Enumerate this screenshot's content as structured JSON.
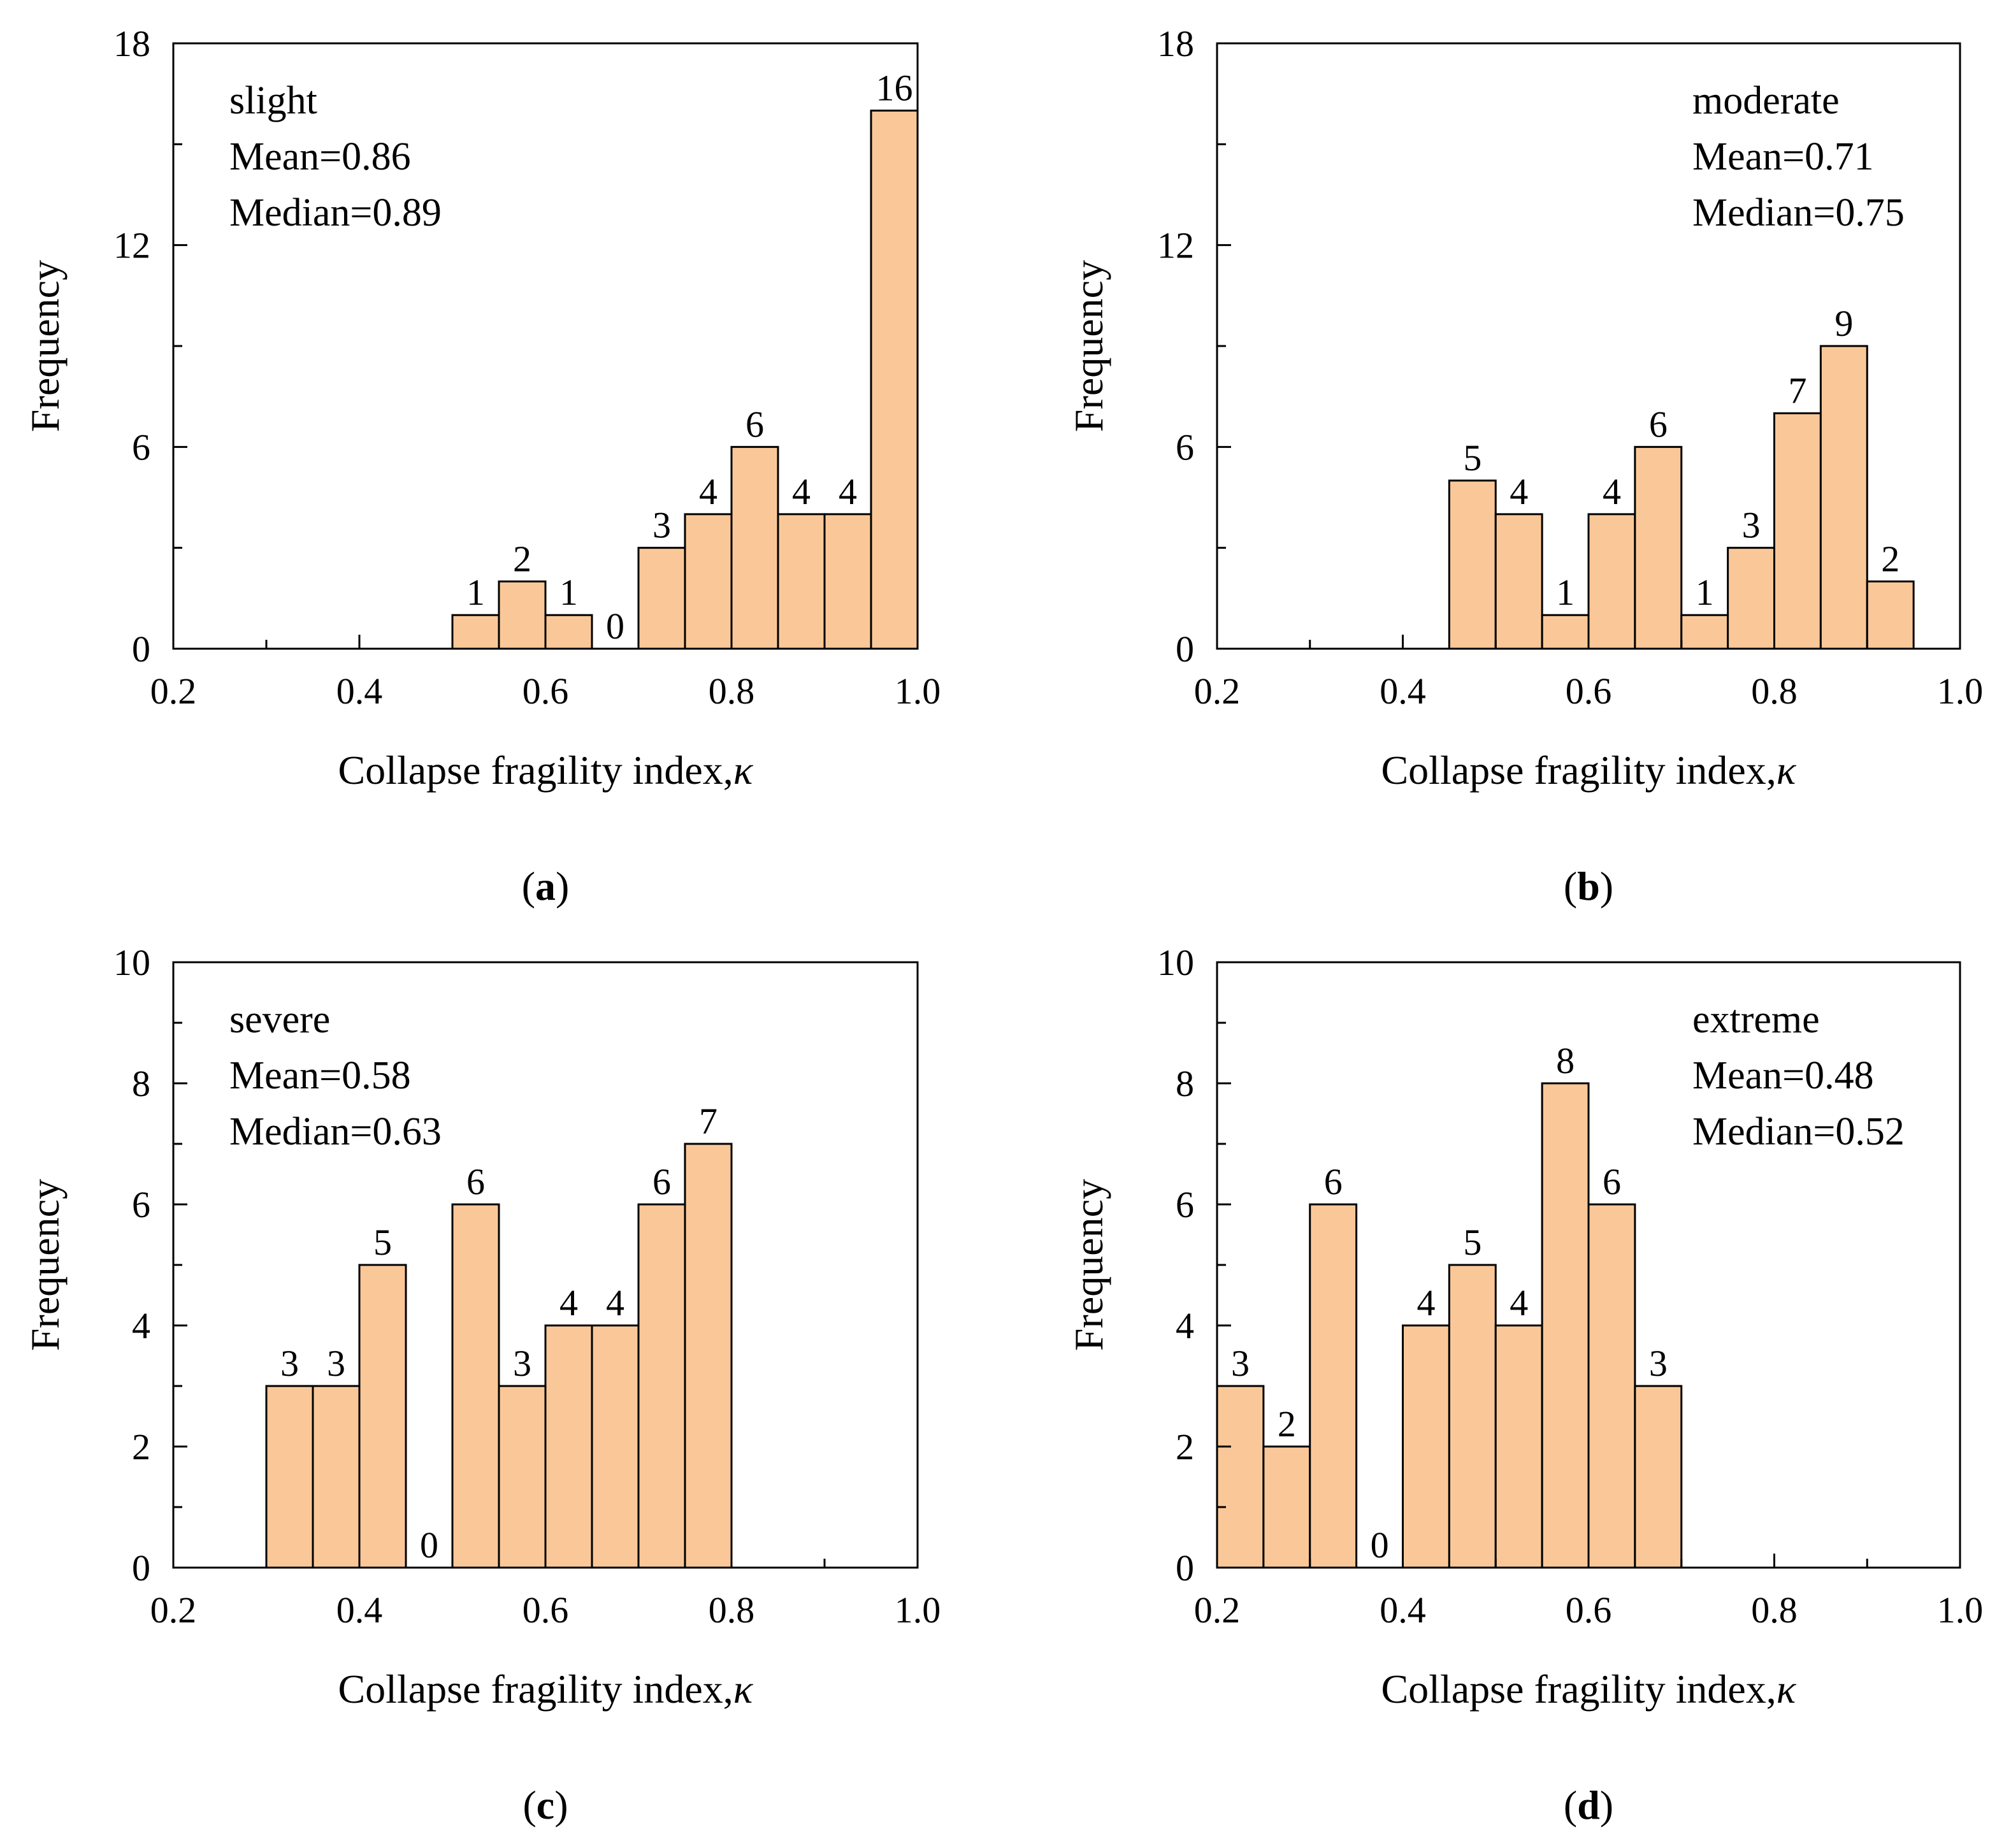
{
  "figure_caption_labels": [
    "a",
    "b",
    "c",
    "d"
  ],
  "chart_data": [
    {
      "type": "bar",
      "panel": "a",
      "panel_label": "a",
      "x_bin_starts": [
        0.5,
        0.55,
        0.6,
        0.65,
        0.7,
        0.75,
        0.8,
        0.85,
        0.9,
        0.95
      ],
      "bin_width": 0.05,
      "values": [
        1,
        2,
        1,
        0,
        3,
        4,
        6,
        4,
        4,
        16
      ],
      "xlabel_text": "Collapse fragility index,",
      "xlabel_symbol": "κ",
      "ylabel": "Frequency",
      "xlim": [
        0.2,
        1.0
      ],
      "ylim": [
        0,
        18
      ],
      "x_ticks": [
        "0.2",
        "0.4",
        "0.6",
        "0.8",
        "1.0"
      ],
      "x_tick_values": [
        0.2,
        0.4,
        0.6,
        0.8,
        1.0
      ],
      "y_ticks": [
        "0",
        "6",
        "12",
        "18"
      ],
      "y_tick_values": [
        0,
        6,
        12,
        18
      ],
      "annotation": [
        "slight",
        "Mean=0.86",
        "Median=0.89"
      ],
      "annotation_position": "top-left"
    },
    {
      "type": "bar",
      "panel": "b",
      "panel_label": "b",
      "x_bin_starts": [
        0.45,
        0.5,
        0.55,
        0.6,
        0.65,
        0.7,
        0.75,
        0.8,
        0.85,
        0.9
      ],
      "bin_width": 0.05,
      "values": [
        5,
        4,
        1,
        4,
        6,
        1,
        3,
        7,
        9,
        2
      ],
      "xlabel_text": "Collapse fragility index,",
      "xlabel_symbol": "κ",
      "ylabel": "Frequency",
      "xlim": [
        0.2,
        1.0
      ],
      "ylim": [
        0,
        18
      ],
      "x_ticks": [
        "0.2",
        "0.4",
        "0.6",
        "0.8",
        "1.0"
      ],
      "x_tick_values": [
        0.2,
        0.4,
        0.6,
        0.8,
        1.0
      ],
      "y_ticks": [
        "0",
        "6",
        "12",
        "18"
      ],
      "y_tick_values": [
        0,
        6,
        12,
        18
      ],
      "annotation": [
        "moderate",
        "Mean=0.71",
        "Median=0.75"
      ],
      "annotation_position": "top-right"
    },
    {
      "type": "bar",
      "panel": "c",
      "panel_label": "c",
      "x_bin_starts": [
        0.3,
        0.35,
        0.4,
        0.45,
        0.5,
        0.55,
        0.6,
        0.65,
        0.7,
        0.75
      ],
      "bin_width": 0.05,
      "values": [
        3,
        3,
        5,
        0,
        6,
        3,
        4,
        4,
        6,
        7
      ],
      "xlabel_text": "Collapse fragility index,",
      "xlabel_symbol": "κ",
      "ylabel": "Frequency",
      "xlim": [
        0.2,
        1.0
      ],
      "ylim": [
        0,
        10
      ],
      "x_ticks": [
        "0.2",
        "0.4",
        "0.6",
        "0.8",
        "1.0"
      ],
      "x_tick_values": [
        0.2,
        0.4,
        0.6,
        0.8,
        1.0
      ],
      "y_ticks": [
        "0",
        "2",
        "4",
        "6",
        "8",
        "10"
      ],
      "y_tick_values": [
        0,
        2,
        4,
        6,
        8,
        10
      ],
      "annotation": [
        "severe",
        "Mean=0.58",
        "Median=0.63"
      ],
      "annotation_position": "top-left"
    },
    {
      "type": "bar",
      "panel": "d",
      "panel_label": "d",
      "x_bin_starts": [
        0.2,
        0.25,
        0.3,
        0.35,
        0.4,
        0.45,
        0.5,
        0.55,
        0.6,
        0.65
      ],
      "bin_width": 0.05,
      "values": [
        3,
        2,
        6,
        0,
        4,
        5,
        4,
        8,
        6,
        3
      ],
      "xlabel_text": "Collapse fragility index,",
      "xlabel_symbol": "κ",
      "ylabel": "Frequency",
      "xlim": [
        0.2,
        1.0
      ],
      "ylim": [
        0,
        10
      ],
      "x_ticks": [
        "0.2",
        "0.4",
        "0.6",
        "0.8",
        "1.0"
      ],
      "x_tick_values": [
        0.2,
        0.4,
        0.6,
        0.8,
        1.0
      ],
      "y_ticks": [
        "0",
        "2",
        "4",
        "6",
        "8",
        "10"
      ],
      "y_tick_values": [
        0,
        2,
        4,
        6,
        8,
        10
      ],
      "annotation": [
        "extreme",
        "Mean=0.48",
        "Median=0.52"
      ],
      "annotation_position": "top-right"
    }
  ],
  "colors": {
    "bar_fill": "#FAC898",
    "stroke": "#000000"
  }
}
